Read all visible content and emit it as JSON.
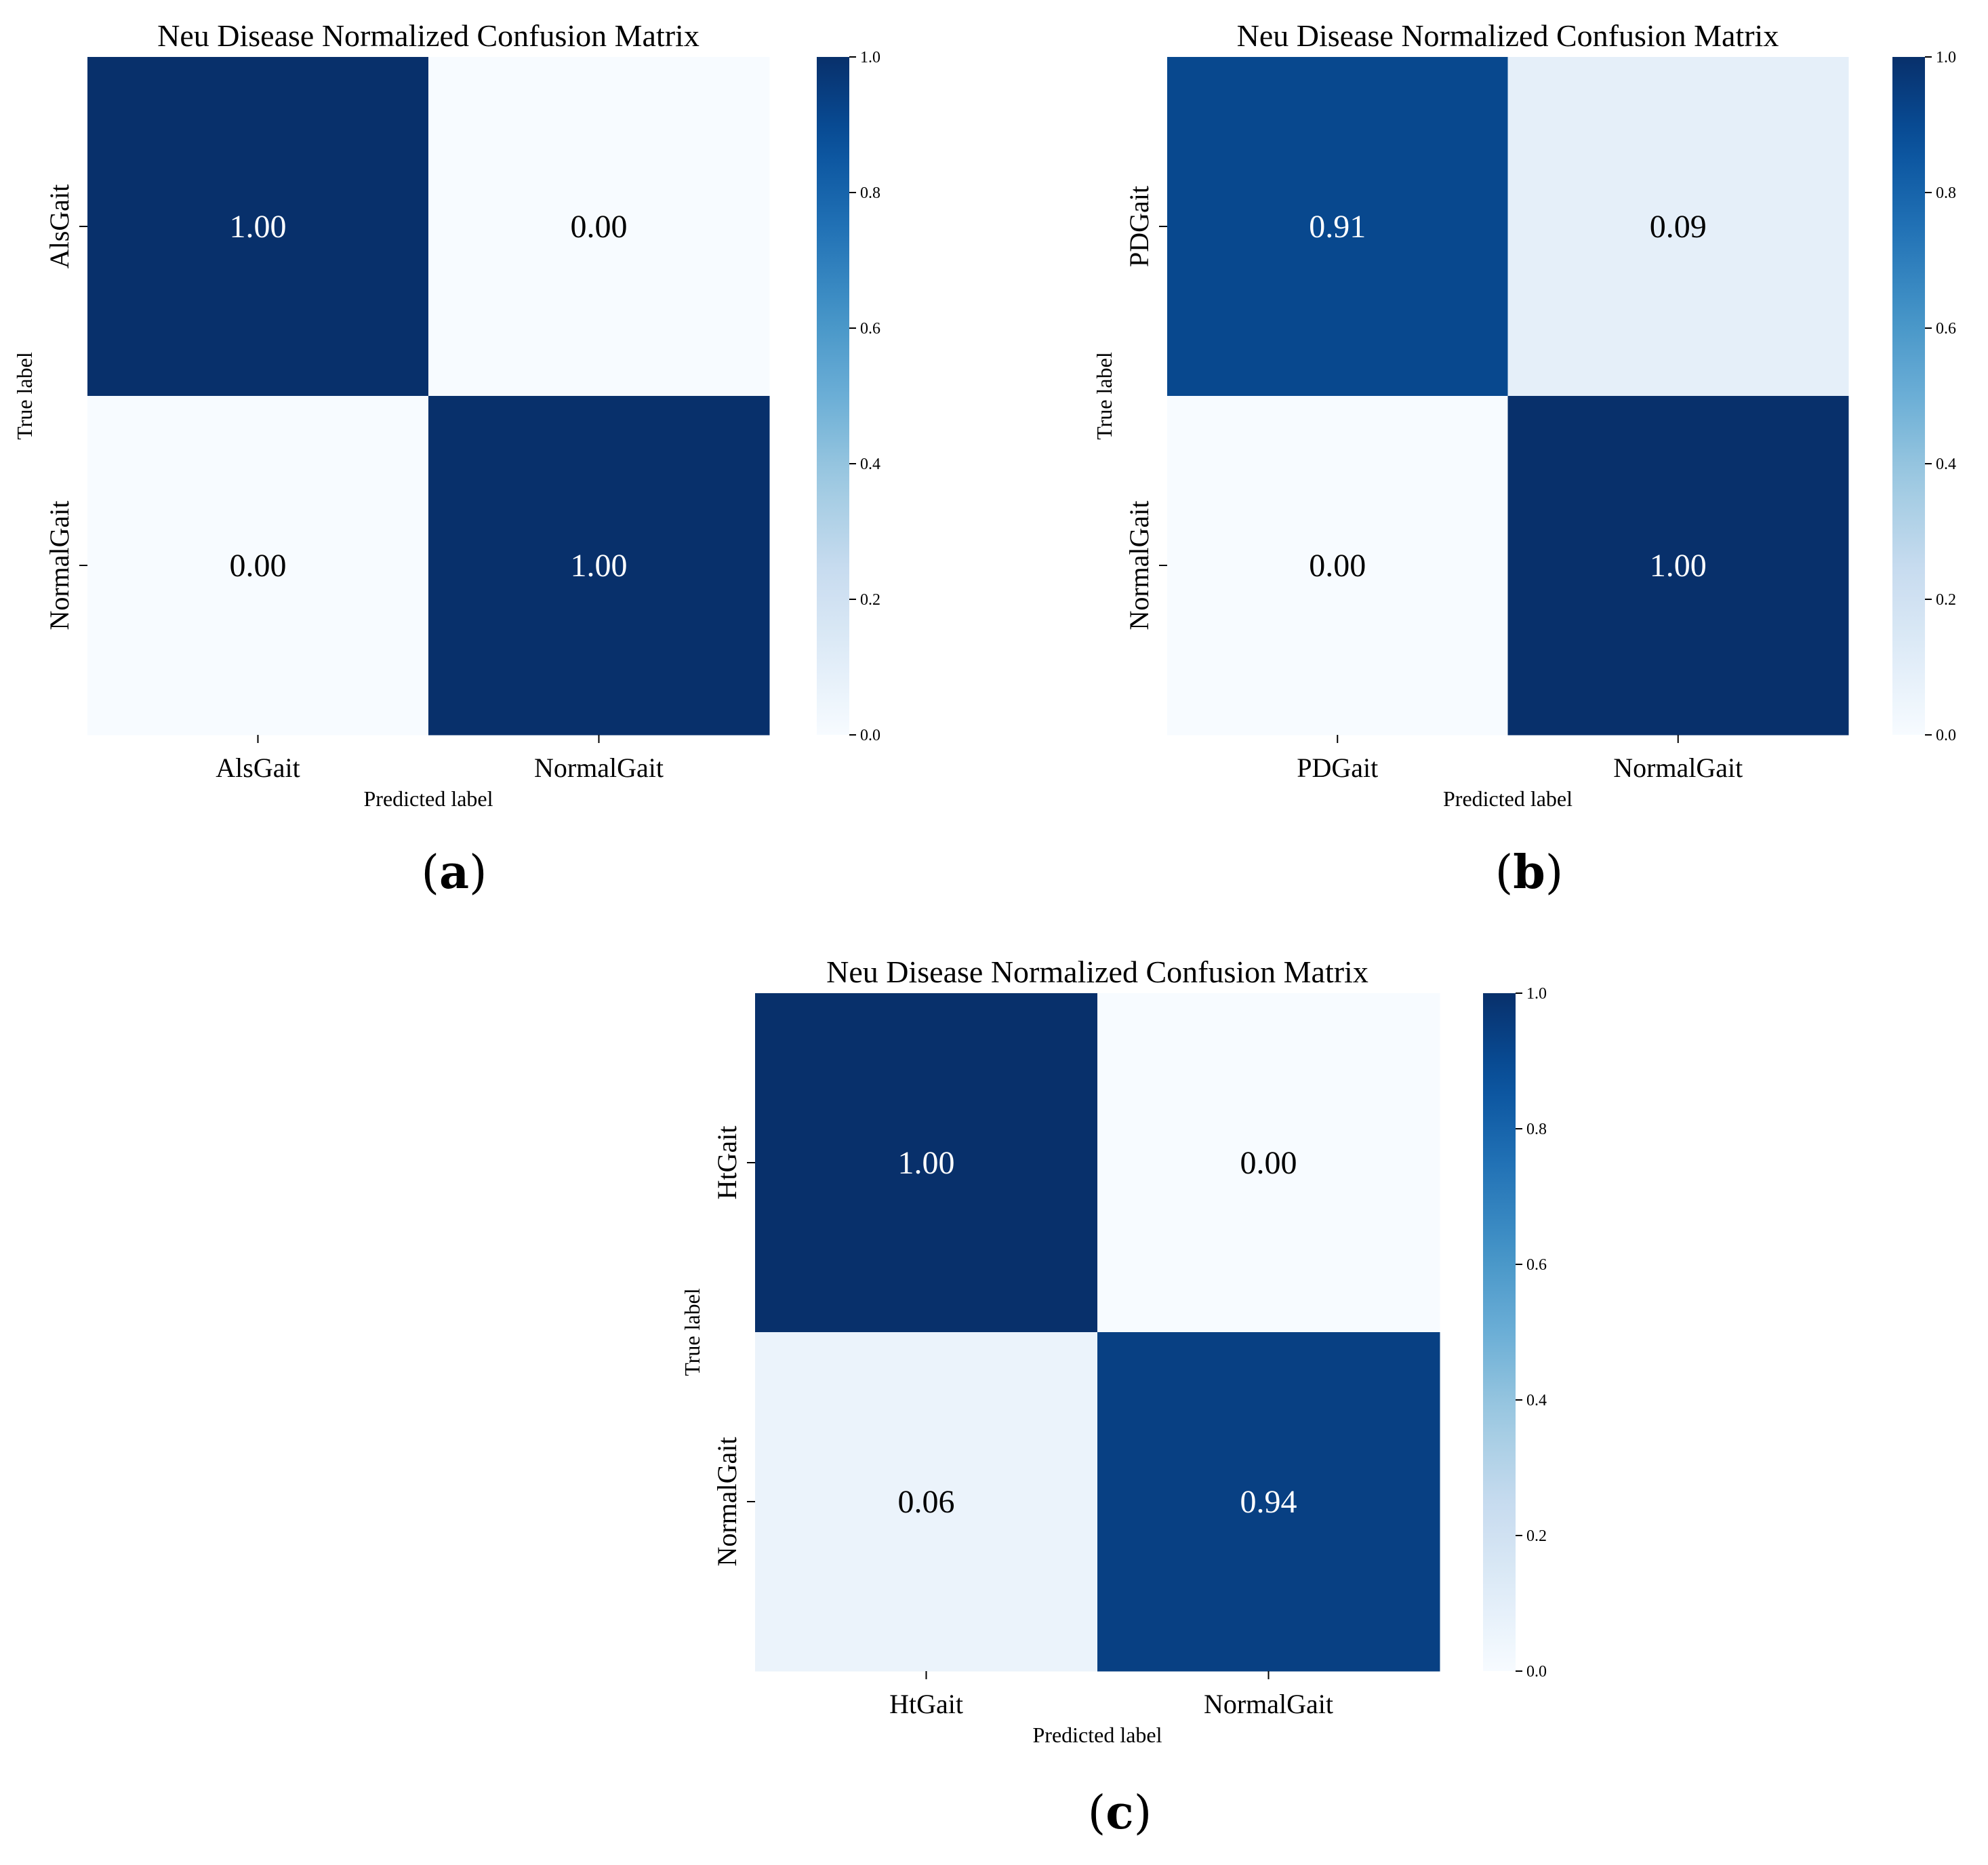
{
  "chart_data": [
    {
      "type": "heatmap",
      "title": "Neu Disease Normalized Confusion Matrix",
      "xlabel": "Predicted label",
      "ylabel": "True label",
      "x_categories": [
        "AlsGait",
        "NormalGait"
      ],
      "y_categories": [
        "AlsGait",
        "NormalGait"
      ],
      "values": [
        [
          1.0,
          0.0
        ],
        [
          0.0,
          1.0
        ]
      ],
      "value_labels": [
        [
          "1.00",
          "0.00"
        ],
        [
          "0.00",
          "1.00"
        ]
      ],
      "colorbar": {
        "range": [
          0.0,
          1.0
        ],
        "ticks": [
          "0.0",
          "0.2",
          "0.4",
          "0.6",
          "0.8",
          "1.0"
        ]
      },
      "colormap": "Blues",
      "panel_label": {
        "open": "(",
        "letter": "a",
        "close": ")"
      }
    },
    {
      "type": "heatmap",
      "title": "Neu Disease Normalized Confusion Matrix",
      "xlabel": "Predicted label",
      "ylabel": "True label",
      "x_categories": [
        "PDGait",
        "NormalGait"
      ],
      "y_categories": [
        "PDGait",
        "NormalGait"
      ],
      "values": [
        [
          0.91,
          0.09
        ],
        [
          0.0,
          1.0
        ]
      ],
      "value_labels": [
        [
          "0.91",
          "0.09"
        ],
        [
          "0.00",
          "1.00"
        ]
      ],
      "colorbar": {
        "range": [
          0.0,
          1.0
        ],
        "ticks": [
          "0.0",
          "0.2",
          "0.4",
          "0.6",
          "0.8",
          "1.0"
        ]
      },
      "colormap": "Blues",
      "panel_label": {
        "open": "(",
        "letter": "b",
        "close": ")"
      }
    },
    {
      "type": "heatmap",
      "title": "Neu Disease Normalized Confusion Matrix",
      "xlabel": "Predicted label",
      "ylabel": "True label",
      "x_categories": [
        "HtGait",
        "NormalGait"
      ],
      "y_categories": [
        "HtGait",
        "NormalGait"
      ],
      "values": [
        [
          1.0,
          0.0
        ],
        [
          0.06,
          0.94
        ]
      ],
      "value_labels": [
        [
          "1.00",
          "0.00"
        ],
        [
          "0.06",
          "0.94"
        ]
      ],
      "colorbar": {
        "range": [
          0.0,
          1.0
        ],
        "ticks": [
          "0.0",
          "0.2",
          "0.4",
          "0.6",
          "0.8",
          "1.0"
        ]
      },
      "colormap": "Blues",
      "panel_label": {
        "open": "(",
        "letter": "c",
        "close": ")"
      }
    }
  ]
}
